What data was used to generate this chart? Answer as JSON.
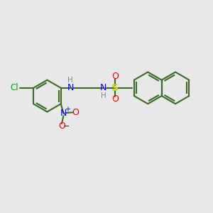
{
  "background_color": "#e8e8e8",
  "bond_color": "#3a6b28",
  "bond_width": 1.5,
  "bg_hex": "#e8e8e8",
  "colors": {
    "bond": "#3a6b28",
    "Cl": "#00aa00",
    "N": "#0000ee",
    "O": "#ff0000",
    "S": "#cccc00",
    "H": "#888888",
    "charge_plus": "#0000ee",
    "charge_minus": "#0000ee"
  },
  "layout": {
    "figsize": [
      3.0,
      3.0
    ],
    "dpi": 100,
    "xlim": [
      0.0,
      10.0
    ],
    "ylim": [
      0.0,
      10.0
    ]
  }
}
